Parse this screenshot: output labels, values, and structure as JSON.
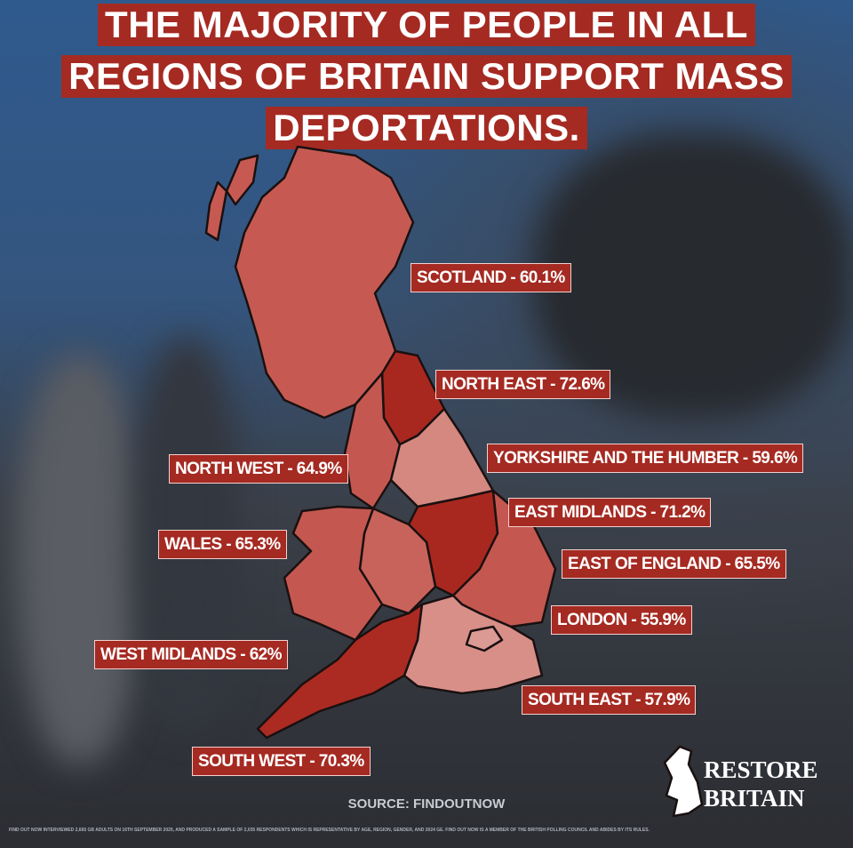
{
  "header": {
    "title_lines": [
      "THE MAJORITY OF PEOPLE IN ALL",
      "REGIONS OF BRITAIN SUPPORT MASS",
      "DEPORTATIONS."
    ]
  },
  "regions": [
    {
      "label": "SCOTLAND - 60.1%",
      "color": "#c65a52"
    },
    {
      "label": "NORTH EAST - 72.6%",
      "color": "#a8281f"
    },
    {
      "label": "YORKSHIRE AND THE HUMBER - 59.6%",
      "color": "#d48880"
    },
    {
      "label": "NORTH WEST - 64.9%",
      "color": "#c45850"
    },
    {
      "label": "EAST MIDLANDS - 71.2%",
      "color": "#a8281f"
    },
    {
      "label": "WALES - 65.3%",
      "color": "#c45850"
    },
    {
      "label": "EAST OF ENGLAND - 65.5%",
      "color": "#c45850"
    },
    {
      "label": "LONDON - 55.9%",
      "color": "#dc9a94"
    },
    {
      "label": "WEST MIDLANDS - 62%",
      "color": "#c8635b"
    },
    {
      "label": "SOUTH EAST - 57.9%",
      "color": "#d88f88"
    },
    {
      "label": "SOUTH WEST - 70.3%",
      "color": "#ab2b22"
    }
  ],
  "source": "SOURCE: FINDOUTNOW",
  "footnote": "FIND OUT NOW INTERVIEWED 2,665 GB ADULTS ON 16TH SEPTEMBER 2025, AND PRODUCED A SAMPLE OF 2,035 RESPONDENTS WHICH IS REPRESENTATIVE BY AGE, REGION, GENDER, AND 2024 GE. FIND OUT NOW IS A MEMBER OF THE BRITISH POLLING COUNCIL AND ABIDES BY ITS RULES.",
  "logo": {
    "line1": "RESTORE",
    "line2": "BRITAIN"
  }
}
